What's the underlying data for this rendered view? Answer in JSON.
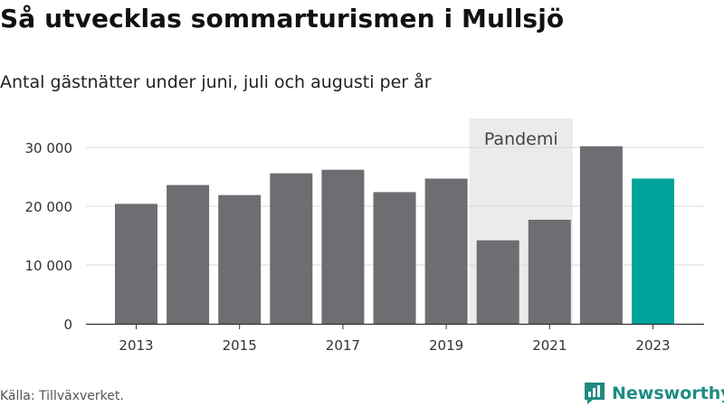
{
  "title": "Så utvecklas sommarturismen i Mullsjö",
  "subtitle": "Antal gästnätter under juni, juli och augusti per år",
  "source": "Källa: Tillväxverket.",
  "brand": "Newsworthy",
  "colors": {
    "bar": "#6e6d72",
    "highlight": "#00a39a",
    "pandemic_band": "#ebebeb",
    "grid": "#d9d9d9",
    "brand": "#1f8b83"
  },
  "chart_data": {
    "type": "bar",
    "categories": [
      "2013",
      "2014",
      "2015",
      "2016",
      "2017",
      "2018",
      "2019",
      "2020",
      "2021",
      "2022",
      "2023"
    ],
    "x_tick_labels": [
      "2013",
      "2015",
      "2017",
      "2019",
      "2021",
      "2023"
    ],
    "values": [
      20400,
      23600,
      21900,
      25600,
      26200,
      22400,
      24700,
      14200,
      17700,
      30200,
      24700
    ],
    "highlight_category": "2023",
    "ylim": [
      0,
      33000
    ],
    "y_ticks": [
      0,
      10000,
      20000,
      30000
    ],
    "y_tick_labels": [
      "0",
      "10 000",
      "20 000",
      "30 000"
    ],
    "grid": true,
    "annotation": {
      "label": "Pandemi",
      "categories": [
        "2020",
        "2021"
      ]
    },
    "xlabel": "",
    "ylabel": ""
  }
}
